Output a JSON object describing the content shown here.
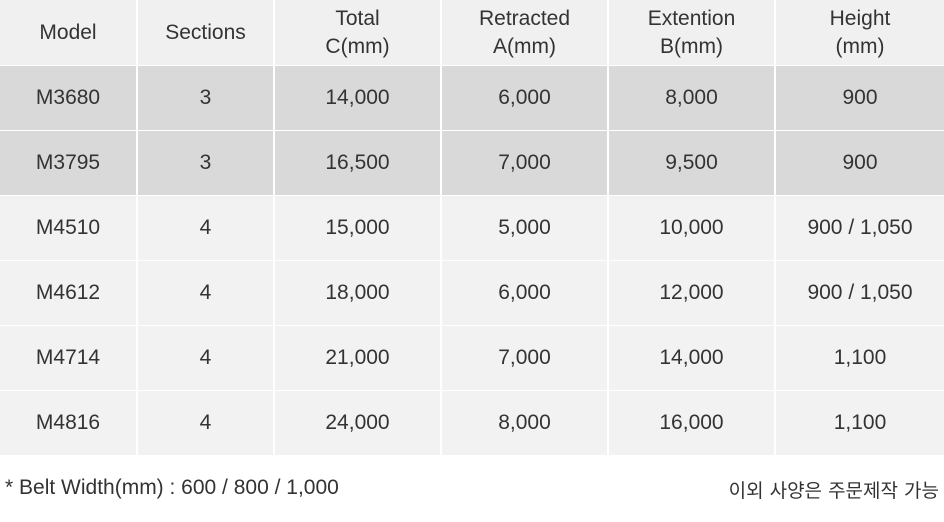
{
  "table": {
    "headers": [
      {
        "line1": "Model",
        "line2": ""
      },
      {
        "line1": "Sections",
        "line2": ""
      },
      {
        "line1": "Total",
        "line2": "C(mm)"
      },
      {
        "line1": "Retracted",
        "line2": "A(mm)"
      },
      {
        "line1": "Extention",
        "line2": "B(mm)"
      },
      {
        "line1": "Height",
        "line2": "(mm)"
      }
    ],
    "rows": [
      {
        "cells": [
          "M3680",
          "3",
          "14,000",
          "6,000",
          "8,000",
          "900"
        ],
        "highlight": true
      },
      {
        "cells": [
          "M3795",
          "3",
          "16,500",
          "7,000",
          "9,500",
          "900"
        ],
        "highlight": true
      },
      {
        "cells": [
          "M4510",
          "4",
          "15,000",
          "5,000",
          "10,000",
          "900 / 1,050"
        ],
        "highlight": false
      },
      {
        "cells": [
          "M4612",
          "4",
          "18,000",
          "6,000",
          "12,000",
          "900 / 1,050"
        ],
        "highlight": false
      },
      {
        "cells": [
          "M4714",
          "4",
          "21,000",
          "7,000",
          "14,000",
          "1,100"
        ],
        "highlight": false
      },
      {
        "cells": [
          "M4816",
          "4",
          "24,000",
          "8,000",
          "16,000",
          "1,100"
        ],
        "highlight": false
      }
    ]
  },
  "footer": {
    "belt_note": "* Belt Width(mm) : 600 / 800 / 1,000",
    "custom_note": "이외 사양은 주문제작 가능"
  },
  "colors": {
    "header_bg": "#f0f0f0",
    "highlight_row_bg": "#d9d9d9",
    "row_bg": "#f2f2f2",
    "text": "#333333"
  }
}
